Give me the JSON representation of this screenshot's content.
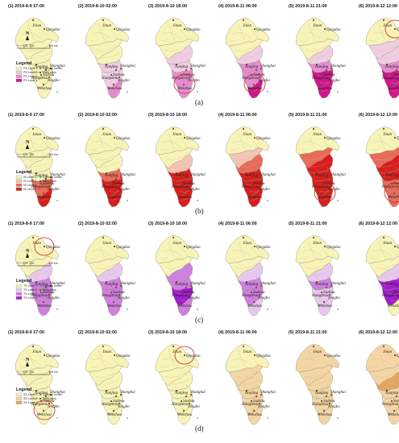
{
  "panel_titles": [
    "(1) 2019-8-9 17:00",
    "(2) 2019-8-10 02:00",
    "(3) 2019-8-10 18:00",
    "(4) 2019-8-11 06:00",
    "(5) 2019-8-11 21:00",
    "(6) 2019-8-12 12:00"
  ],
  "cities": [
    "Jinan",
    "Qingdao",
    "Nanjing",
    "Shanghai",
    "Suzhou",
    "Hangzhou",
    "Ningbo",
    "Wenzhou"
  ],
  "scale_labels": [
    "0",
    "125",
    "250",
    "500 km"
  ],
  "north_symbol": "N",
  "legend_title": "Legend",
  "legend_markers": [
    "Cyclone center",
    "Main cities"
  ],
  "rows": [
    {
      "key": "a",
      "label": "(a)",
      "levels": [
        "PS Level 1",
        "PS Level 2",
        "PS Level 3",
        "PS Level 4"
      ],
      "colors": [
        "#f8f4b8",
        "#f1cde4",
        "#e58bd2",
        "#d1168f"
      ],
      "panel_levels": [
        [
          0,
          0,
          0,
          0,
          0,
          0
        ],
        [
          0,
          0,
          0,
          1,
          1,
          2
        ],
        [
          0,
          0,
          1,
          1,
          2,
          2
        ],
        [
          0,
          0,
          1,
          2,
          2,
          3
        ],
        [
          0,
          0,
          1,
          2,
          3,
          3
        ],
        [
          0,
          1,
          1,
          2,
          3,
          3
        ]
      ],
      "highlight_circle": [
        null,
        null,
        "south",
        "south",
        null,
        "north"
      ]
    },
    {
      "key": "b",
      "label": "(b)",
      "levels": [
        "IS Level 1",
        "IS Level 2",
        "IS Level 3",
        "IS Level 4"
      ],
      "colors": [
        "#f8f4b8",
        "#f4c4b4",
        "#ea6a5a",
        "#d81d1d"
      ],
      "panel_levels": [
        [
          0,
          0,
          0,
          0,
          2,
          3
        ],
        [
          0,
          0,
          0,
          2,
          3,
          3
        ],
        [
          0,
          0,
          1,
          3,
          3,
          3
        ],
        [
          0,
          1,
          2,
          3,
          3,
          3
        ],
        [
          0,
          2,
          3,
          3,
          3,
          3
        ],
        [
          0,
          2,
          3,
          3,
          2,
          2
        ]
      ],
      "highlight_circle": [
        null,
        null,
        null,
        null,
        "south",
        "south"
      ]
    },
    {
      "key": "c",
      "label": "(c)",
      "levels": [
        "TS Level 1",
        "TS Level 2",
        "TS Level 3",
        "TS Level 4"
      ],
      "colors": [
        "#f8f4b8",
        "#e7c8ef",
        "#cf7fe0",
        "#a41ad2"
      ],
      "panel_levels": [
        [
          0,
          0,
          1,
          2,
          2,
          2
        ],
        [
          0,
          0,
          1,
          2,
          2,
          2
        ],
        [
          0,
          0,
          2,
          2,
          3,
          2
        ],
        [
          0,
          0,
          1,
          2,
          2,
          1
        ],
        [
          0,
          0,
          1,
          2,
          1,
          1
        ],
        [
          0,
          0,
          1,
          3,
          3,
          0
        ]
      ],
      "highlight_circle": [
        "north",
        null,
        null,
        null,
        null,
        null
      ]
    },
    {
      "key": "d",
      "label": "(d)",
      "levels": [
        "SS Level 1",
        "SS Level 2",
        "SS Level 3"
      ],
      "colors": [
        "#f8f4b8",
        "#f4d6a4",
        "#e4a65e"
      ],
      "panel_levels": [
        [
          0,
          0,
          0,
          0,
          0,
          0
        ],
        [
          0,
          0,
          0,
          0,
          0,
          0
        ],
        [
          0,
          0,
          0,
          0,
          0,
          0
        ],
        [
          0,
          1,
          1,
          1,
          1,
          1
        ],
        [
          1,
          1,
          1,
          1,
          1,
          1
        ],
        [
          1,
          1,
          2,
          1,
          1,
          1
        ]
      ],
      "highlight_circle": [
        "south",
        null,
        "north",
        null,
        null,
        null
      ]
    }
  ]
}
